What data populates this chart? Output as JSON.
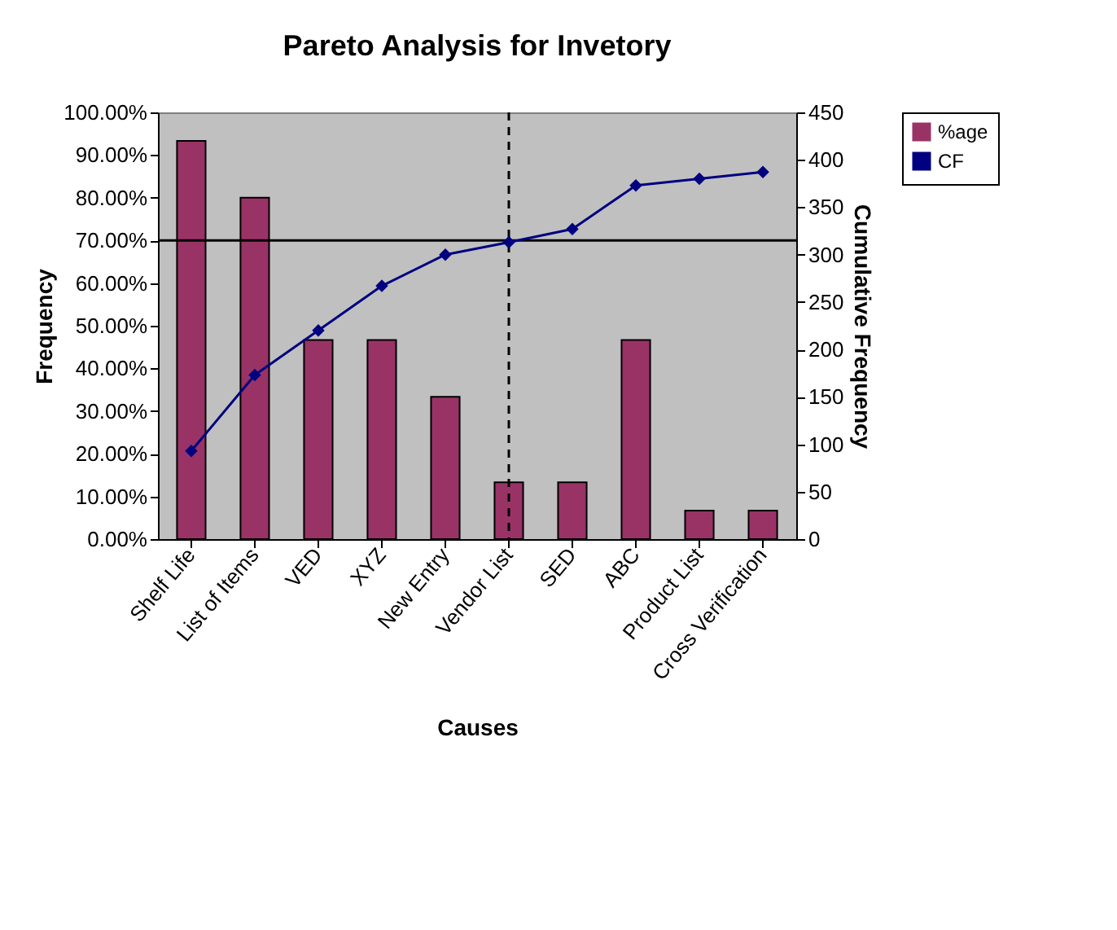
{
  "chart_data": {
    "type": "bar",
    "title": "Pareto Analysis for Invetory",
    "xlabel": "Causes",
    "ylabel": "Frequency",
    "y2label": "Cumulative Frequency",
    "categories": [
      "Shelf Life",
      "List of Items",
      "VED",
      "XYZ",
      "New Entry",
      "Vendor List",
      "SED",
      "ABC",
      "Product List",
      "Cross Verification"
    ],
    "series": [
      {
        "name": "%age",
        "color": "#993366",
        "values": [
          93.33,
          80,
          46.67,
          46.67,
          33.33,
          13.33,
          13.33,
          46.67,
          6.67,
          6.67
        ]
      },
      {
        "name": "CF",
        "type": "line",
        "axis": "y2",
        "color": "#000080",
        "marker": "diamond",
        "line_style": "solid",
        "values": [
          93,
          173,
          220,
          267,
          300,
          313,
          327,
          373,
          380,
          387
        ]
      }
    ],
    "ylim": [
      0,
      100
    ],
    "yticks": [
      {
        "value": 0,
        "label": "0.00%"
      },
      {
        "value": 10,
        "label": "10.00%"
      },
      {
        "value": 20,
        "label": "20.00%"
      },
      {
        "value": 30,
        "label": "30.00%"
      },
      {
        "value": 40,
        "label": "40.00%"
      },
      {
        "value": 50,
        "label": "50.00%"
      },
      {
        "value": 60,
        "label": "60.00%"
      },
      {
        "value": 70,
        "label": "70.00%"
      },
      {
        "value": 80,
        "label": "80.00%"
      },
      {
        "value": 90,
        "label": "90.00%"
      },
      {
        "value": 100,
        "label": "100.00%"
      }
    ],
    "y2lim": [
      0,
      450
    ],
    "y2ticks": [
      0,
      50,
      100,
      150,
      200,
      250,
      300,
      350,
      400,
      450
    ],
    "ref_lines": [
      {
        "axis": "y",
        "value": 70,
        "color": "#000000",
        "line_style": "solid"
      },
      {
        "axis": "x",
        "value": "Vendor List",
        "color": "#000000",
        "line_style": "dashed"
      }
    ],
    "grid": false,
    "legend": "right"
  }
}
